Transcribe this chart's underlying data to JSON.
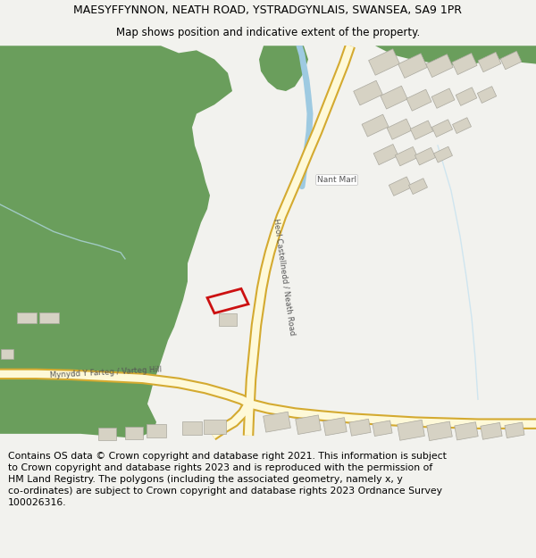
{
  "title_line1": "MAESYFFYNNON, NEATH ROAD, YSTRADGYNLAIS, SWANSEA, SA9 1PR",
  "title_line2": "Map shows position and indicative extent of the property.",
  "footer_text": "Contains OS data © Crown copyright and database right 2021. This information is subject\nto Crown copyright and database rights 2023 and is reproduced with the permission of\nHM Land Registry. The polygons (including the associated geometry, namely x, y\nco-ordinates) are subject to Crown copyright and database rights 2023 Ordnance Survey\n100026316.",
  "bg_color": "#f2f2ee",
  "map_bg": "#ffffff",
  "green_color": "#6a9e5c",
  "road_fill": "#fef9d8",
  "road_stroke": "#d4aa30",
  "water_color": "#9ecae1",
  "stream_color": "#b8ddf0",
  "building_color": "#d6d2c4",
  "building_edge": "#aaa89e",
  "red_color": "#cc1111",
  "title_fontsize": 9.0,
  "subtitle_fontsize": 8.5,
  "footer_fontsize": 7.8,
  "label_fontsize": 6.5,
  "road_label_fontsize": 6.2
}
